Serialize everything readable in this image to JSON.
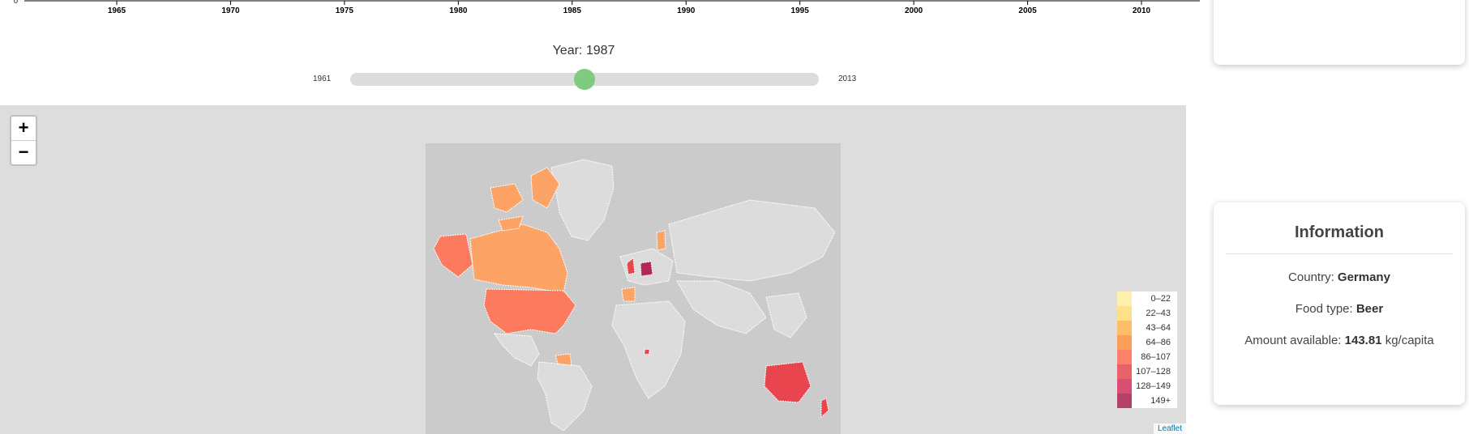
{
  "timeline": {
    "tick_labels": [
      "1965",
      "1970",
      "1975",
      "1980",
      "1985",
      "1990",
      "1995",
      "2000",
      "2005",
      "2010"
    ],
    "first_year": 1961,
    "last_year": 2013,
    "start_label": "0"
  },
  "slider": {
    "title": "Year: 1987",
    "min_label": "1961",
    "max_label": "2013",
    "min": 1961,
    "max": 2013,
    "value": 1987,
    "knob_color": "#7fcc80"
  },
  "map": {
    "zoom_in_label": "+",
    "zoom_out_label": "−",
    "attribution": "Leaflet",
    "legend": [
      {
        "label": "0–22",
        "color": "#ffeda0"
      },
      {
        "label": "22–43",
        "color": "#fed976"
      },
      {
        "label": "43–64",
        "color": "#feb24c"
      },
      {
        "label": "64–86",
        "color": "#fd8d3c"
      },
      {
        "label": "86–107",
        "color": "#fc6c4f"
      },
      {
        "label": "107–128",
        "color": "#e8454f"
      },
      {
        "label": "128–149",
        "color": "#d0305a"
      },
      {
        "label": "149+",
        "color": "#a81f4e"
      }
    ]
  },
  "info": {
    "title": "Information",
    "country_label": "Country: ",
    "country": "Germany",
    "food_label": "Food type: ",
    "food": "Beer",
    "amount_label": "Amount available: ",
    "amount": "143.81",
    "unit": " kg/capita"
  }
}
